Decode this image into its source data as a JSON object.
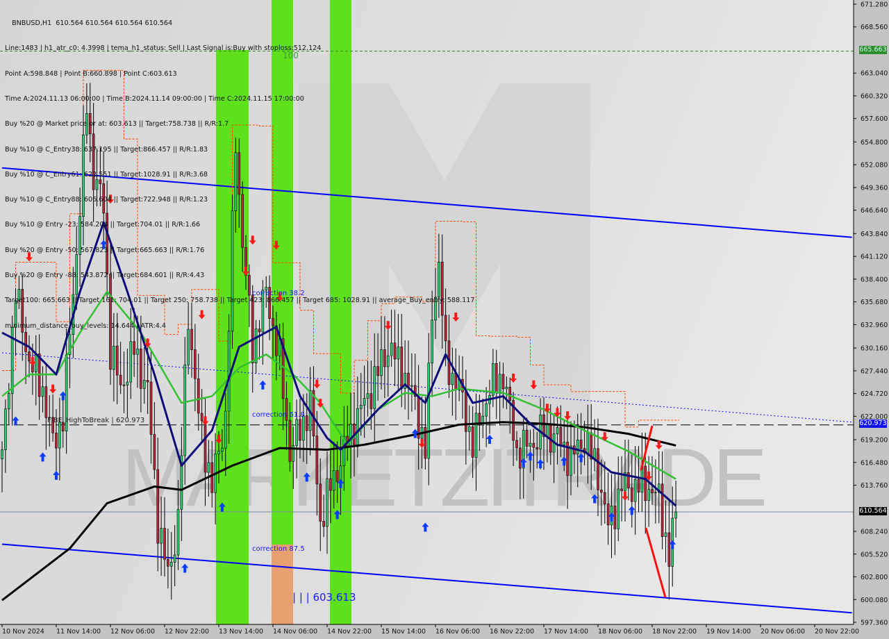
{
  "symbol_header": "BNBUSD,H1  610.564 610.564 610.564 610.564",
  "info": {
    "lines": [
      "Line:1483 | h1_atr_c0: 4.3998 | tema_h1_status: Sell | Last Signal is:Buy with stoploss:512.124",
      "Point A:598.848 | Point B:660.898 | Point C:603.613",
      "Time A:2024.11.13 06:00:00 | Time B:2024.11.14 09:00:00 | Time C:2024.11.15 17:00:00",
      "Buy %20 @ Market price or at: 603.613 || Target:758.738 || R/R:1.7",
      "Buy %10 @ C_Entry38: 637.195 || Target:866.457 || R/R:1.83",
      "Buy %10 @ C_Entry61: 622.551 || Target:1028.91 || R/R:3.68",
      "Buy %10 @ C_Entry88: 606.604 || Target:722.948 || R/R:1.23",
      "Buy %10 @ Entry -23: 584.204 || Target:704.01 || R/R:1.66",
      "Buy %20 @ Entry -50: 567.823 || Target:665.663 || R/R:1.76",
      "Buy %20 @ Entry -88: 543.872 || Target:684.601 || R/R:4.43",
      "Target100: 665.663 || Target 161: 704.01 || Target 250: 758.738 || Target 423: 866.457 || Target 685: 1028.91 || average_Buy_entry: 588.117",
      "minimum_distance_buy_levels: 14.644 | ATR:4.4"
    ]
  },
  "labels": {
    "level_100": "100",
    "correction_382": "correction 38.2",
    "correction_618": "correction 61.8",
    "correction_875": "correction 87.5",
    "point_c": "| | | 603.613",
    "fibe": "FIBE_HighToBreak | 620.973",
    "watermark": "MARKETZITRADE"
  },
  "price_tags": {
    "target100": "665.663",
    "high_to_break": "620.973",
    "current": "610.564"
  },
  "colors": {
    "bull": "#2fcf6f",
    "bear": "#b8283c",
    "ma_slow": "#000000",
    "ma_mid": "#33c133",
    "ma_fast": "#0a0a78",
    "channel": "#0000ff",
    "zone_green": "#5ee01a",
    "zone_orange": "#e8a070",
    "signal_up": "#0a3cff",
    "signal_down": "#ff1a1a"
  },
  "chart_data": {
    "type": "candlestick",
    "symbol": "BNBUSD",
    "timeframe": "H1",
    "ylim": [
      597.36,
      671.28
    ],
    "y_ticks": [
      671.28,
      668.56,
      663.04,
      660.32,
      657.6,
      654.8,
      652.08,
      649.36,
      646.64,
      643.84,
      641.12,
      638.4,
      635.68,
      632.96,
      630.16,
      627.44,
      624.72,
      622.0,
      619.2,
      616.48,
      613.76,
      608.24,
      605.52,
      602.8,
      600.08,
      597.36
    ],
    "x_ticks": [
      "10 Nov 2024",
      "11 Nov 14:00",
      "12 Nov 06:00",
      "12 Nov 22:00",
      "13 Nov 14:00",
      "14 Nov 06:00",
      "14 Nov 22:00",
      "15 Nov 14:00",
      "16 Nov 06:00",
      "16 Nov 22:00",
      "17 Nov 14:00",
      "18 Nov 06:00",
      "18 Nov 22:00",
      "19 Nov 14:00",
      "20 Nov 06:00",
      "20 Nov 22:00"
    ],
    "close_path": [
      [
        1,
        621.9
      ],
      [
        4,
        636.9
      ],
      [
        8,
        628.6
      ],
      [
        12,
        625.3
      ],
      [
        15,
        618.6
      ],
      [
        18,
        622
      ],
      [
        23,
        646.9
      ],
      [
        25,
        659.3
      ],
      [
        27,
        651
      ],
      [
        30,
        647
      ],
      [
        32,
        630
      ],
      [
        35,
        625.3
      ],
      [
        39,
        630
      ],
      [
        43,
        625
      ],
      [
        46,
        609.5
      ],
      [
        49,
        602.8
      ],
      [
        52,
        609.5
      ],
      [
        55,
        634.4
      ],
      [
        58,
        622
      ],
      [
        62,
        613.6
      ],
      [
        66,
        622
      ],
      [
        69,
        655
      ],
      [
        71,
        642.7
      ],
      [
        74,
        630.3
      ],
      [
        78,
        636.9
      ],
      [
        82,
        628.6
      ],
      [
        85,
        617.8
      ],
      [
        88,
        620.3
      ],
      [
        91,
        623.6
      ],
      [
        94,
        609.5
      ],
      [
        97,
        613.6
      ],
      [
        101,
        617.8
      ],
      [
        105,
        622
      ],
      [
        109,
        625.3
      ],
      [
        114,
        630.3
      ],
      [
        118,
        627.8
      ],
      [
        122,
        623.6
      ],
      [
        125,
        617.8
      ],
      [
        127,
        634.4
      ],
      [
        129,
        640.2
      ],
      [
        131,
        628.6
      ],
      [
        135,
        625.3
      ],
      [
        139,
        618.6
      ],
      [
        144,
        625.3
      ],
      [
        148,
        627
      ],
      [
        152,
        617.8
      ],
      [
        156,
        618.6
      ],
      [
        160,
        620.3
      ],
      [
        164,
        619.4
      ],
      [
        168,
        616.9
      ],
      [
        172,
        619.4
      ],
      [
        176,
        615.3
      ],
      [
        179,
        608.7
      ],
      [
        183,
        613.6
      ],
      [
        187,
        613.6
      ],
      [
        191,
        613.6
      ],
      [
        194,
        612
      ],
      [
        197,
        605.3
      ],
      [
        199,
        610.56
      ]
    ],
    "ma_slow": [
      [
        0,
        600
      ],
      [
        20,
        606.2
      ],
      [
        31,
        611.6
      ],
      [
        45,
        613.6
      ],
      [
        53,
        613.2
      ],
      [
        68,
        616.1
      ],
      [
        82,
        618.2
      ],
      [
        96,
        618
      ],
      [
        107,
        618.6
      ],
      [
        123,
        619.9
      ],
      [
        135,
        621
      ],
      [
        148,
        621.3
      ],
      [
        160,
        621.1
      ],
      [
        172,
        620.7
      ],
      [
        185,
        619.9
      ],
      [
        199,
        618.5
      ]
    ],
    "ma_mid": [
      [
        0,
        624.4
      ],
      [
        8,
        627
      ],
      [
        16,
        627
      ],
      [
        23,
        632
      ],
      [
        31,
        636.9
      ],
      [
        41,
        632
      ],
      [
        53,
        623.6
      ],
      [
        62,
        624.4
      ],
      [
        70,
        627.8
      ],
      [
        78,
        629.4
      ],
      [
        86,
        627
      ],
      [
        94,
        623.6
      ],
      [
        102,
        618.6
      ],
      [
        111,
        622.8
      ],
      [
        119,
        624.8
      ],
      [
        127,
        624.4
      ],
      [
        135,
        625.3
      ],
      [
        148,
        624.8
      ],
      [
        160,
        622.8
      ],
      [
        172,
        620.3
      ],
      [
        185,
        617.8
      ],
      [
        199,
        614.5
      ]
    ],
    "ma_fast": [
      [
        0,
        632
      ],
      [
        8,
        630.3
      ],
      [
        16,
        627
      ],
      [
        23,
        636.9
      ],
      [
        30,
        645.2
      ],
      [
        37,
        636.9
      ],
      [
        45,
        627
      ],
      [
        53,
        616.1
      ],
      [
        62,
        620.3
      ],
      [
        70,
        630.3
      ],
      [
        81,
        632.7
      ],
      [
        88,
        624.4
      ],
      [
        96,
        619.4
      ],
      [
        100,
        618
      ],
      [
        111,
        622.8
      ],
      [
        119,
        625.8
      ],
      [
        125,
        623.6
      ],
      [
        131,
        629.4
      ],
      [
        139,
        623.6
      ],
      [
        148,
        624.4
      ],
      [
        156,
        621.1
      ],
      [
        164,
        618.6
      ],
      [
        172,
        617.8
      ],
      [
        180,
        615.3
      ],
      [
        190,
        614.5
      ],
      [
        199,
        611.3
      ]
    ],
    "channel_upper": [
      [
        0,
        651.7
      ],
      [
        251,
        643.4
      ]
    ],
    "channel_lower": [
      [
        0,
        606.7
      ],
      [
        251,
        598.5
      ]
    ],
    "trend_dotted": [
      [
        0,
        629.6
      ],
      [
        251,
        621.3
      ]
    ],
    "levels": {
      "target100": 665.663,
      "high_to_break": 620.973,
      "current": 610.564
    },
    "signals_up": [
      [
        4,
        621.4
      ],
      [
        12,
        617.1
      ],
      [
        16,
        614.9
      ],
      [
        18,
        624.4
      ],
      [
        30,
        642.5
      ],
      [
        54,
        603.8
      ],
      [
        65,
        611.1
      ],
      [
        77,
        625.7
      ],
      [
        90,
        614.7
      ],
      [
        99,
        610.2
      ],
      [
        100,
        613.9
      ],
      [
        122,
        619.9
      ],
      [
        125,
        608.7
      ],
      [
        144,
        619.2
      ],
      [
        154,
        616.4
      ],
      [
        156,
        617.2
      ],
      [
        159,
        616.3
      ],
      [
        166,
        616.6
      ],
      [
        171,
        617
      ],
      [
        175,
        612.1
      ],
      [
        180,
        609.9
      ],
      [
        186,
        610.7
      ],
      [
        198,
        606.6
      ]
    ],
    "signals_down": [
      [
        8,
        641.1
      ],
      [
        9,
        628.6
      ],
      [
        15,
        625.3
      ],
      [
        32,
        648
      ],
      [
        43,
        630.8
      ],
      [
        59,
        634.2
      ],
      [
        60,
        621.5
      ],
      [
        64,
        619.3
      ],
      [
        72,
        639.4
      ],
      [
        74,
        643.1
      ],
      [
        81,
        642.5
      ],
      [
        82,
        636.3
      ],
      [
        93,
        625.9
      ],
      [
        94,
        623.6
      ],
      [
        114,
        632.9
      ],
      [
        124,
        618.8
      ],
      [
        134,
        633.9
      ],
      [
        151,
        626.6
      ],
      [
        157,
        625.8
      ],
      [
        161,
        623
      ],
      [
        164,
        622.5
      ],
      [
        167,
        622.1
      ],
      [
        178,
        619.6
      ],
      [
        184,
        612.5
      ],
      [
        191,
        614.9
      ],
      [
        194,
        618.6
      ]
    ]
  }
}
